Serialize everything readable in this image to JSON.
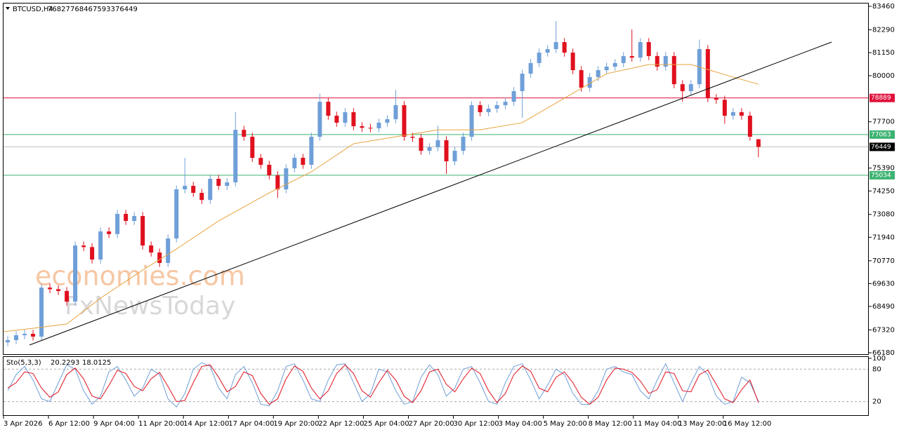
{
  "chart_data": {
    "type": "candlestick",
    "symbol": "BTCUSD,H4",
    "watermark": [
      "economies.com",
      "FxNewsToday"
    ],
    "up_color": "#6f9fd8",
    "down_color": "#e0101e",
    "xlim": [
      -0.5,
      102
    ],
    "xticks": [
      {
        "value": -0.5,
        "label": "3 Apr 2026"
      },
      {
        "value": 4.83,
        "label": "6 Apr 12:00"
      },
      {
        "value": 10.17,
        "label": "9 Apr 04:00"
      },
      {
        "value": 15.5,
        "label": "11 Apr 20:00"
      },
      {
        "value": 20.83,
        "label": "14 Apr 12:00"
      },
      {
        "value": 26.17,
        "label": "17 Apr 04:00"
      },
      {
        "value": 31.5,
        "label": "19 Apr 20:00"
      },
      {
        "value": 36.83,
        "label": "22 Apr 12:00"
      },
      {
        "value": 42.17,
        "label": "25 Apr 04:00"
      },
      {
        "value": 47.5,
        "label": "27 Apr 20:00"
      },
      {
        "value": 52.83,
        "label": "30 Apr 12:00"
      },
      {
        "value": 58.17,
        "label": "3 May 04:00"
      },
      {
        "value": 63.5,
        "label": "5 May 20:00"
      },
      {
        "value": 68.83,
        "label": "8 May 12:00"
      },
      {
        "value": 74.17,
        "label": "11 May 04:00"
      },
      {
        "value": 79.5,
        "label": "13 May 20:00"
      },
      {
        "value": 84.83,
        "label": "16 May 12:00"
      }
    ],
    "ylim": [
      66110,
      83635
    ],
    "yticks": [
      83460,
      82290,
      81150,
      80000,
      77700,
      75390,
      74250,
      73080,
      71940,
      70770,
      69630,
      68490,
      67320,
      66180
    ],
    "open": [
      66700,
      66810,
      67055,
      67125,
      66985,
      69430,
      69350,
      69260,
      68730,
      71530,
      71450,
      70830,
      72230,
      72100,
      73105,
      72755,
      73000,
      71530,
      71180,
      70660,
      71880,
      74330,
      74505,
      74155,
      73800,
      74855,
      74505,
      74680,
      77300,
      76955,
      75900,
      75555,
      75030,
      74330,
      75380,
      75905,
      75555,
      76955,
      78700,
      78005,
      77655,
      78180,
      77480,
      77400,
      77375,
      77655,
      77830,
      78530,
      76955,
      76900,
      76255,
      76430,
      76780,
      75730,
      76255,
      76955,
      78530,
      78180,
      78355,
      78530,
      78700,
      79230,
      80100,
      80630,
      81150,
      81325,
      81675,
      81150,
      80275,
      79400,
      79930,
      80275,
      80450,
      80630,
      80980,
      80900,
      81675,
      80980,
      80450,
      80980,
      79575,
      79230,
      79575,
      81325,
      78880,
      78800,
      78005,
      78180,
      78005,
      76827
    ],
    "high": [
      67010,
      67255,
      67325,
      67325,
      69630,
      69630,
      69550,
      69460,
      71730,
      71730,
      71650,
      72430,
      72430,
      73305,
      73305,
      73200,
      73200,
      71730,
      71380,
      72080,
      74530,
      75900,
      74705,
      74355,
      75055,
      75055,
      74880,
      78180,
      77500,
      77155,
      76100,
      75755,
      75230,
      75580,
      76105,
      76105,
      77155,
      79100,
      78900,
      78205,
      78380,
      78380,
      77680,
      77600,
      77855,
      78030,
      79300,
      78730,
      77155,
      77100,
      76630,
      77500,
      76980,
      76455,
      77155,
      78730,
      78730,
      78555,
      78730,
      78900,
      79430,
      80300,
      80830,
      81350,
      81525,
      82725,
      81875,
      81350,
      80475,
      80130,
      80475,
      80650,
      80830,
      81180,
      82300,
      81875,
      81875,
      81180,
      81180,
      81180,
      79775,
      79775,
      81800,
      81525,
      79080,
      79000,
      78380,
      78380,
      78205,
      76846
    ],
    "low": [
      66500,
      66610,
      66855,
      66785,
      66785,
      69150,
      69060,
      68530,
      68530,
      71250,
      70630,
      70630,
      71900,
      71900,
      72555,
      72555,
      71330,
      70980,
      70460,
      70460,
      71680,
      74130,
      73955,
      73600,
      73600,
      74305,
      74305,
      74480,
      76755,
      75700,
      75355,
      74830,
      73900,
      74130,
      75180,
      75355,
      75355,
      76755,
      77805,
      77455,
      77455,
      77280,
      77200,
      77175,
      77175,
      77455,
      77630,
      76755,
      76700,
      76055,
      76055,
      76230,
      75100,
      75530,
      76055,
      76755,
      77980,
      77980,
      78155,
      78330,
      78500,
      77900,
      79900,
      80430,
      80950,
      81125,
      80950,
      80075,
      79200,
      79200,
      79730,
      80075,
      80250,
      80430,
      80700,
      80700,
      80780,
      80250,
      80250,
      79375,
      78700,
      79030,
      79375,
      78680,
      78600,
      77600,
      77805,
      77805,
      76755,
      75933
    ],
    "close": [
      66810,
      67055,
      67125,
      66985,
      69430,
      69350,
      69260,
      68730,
      71530,
      71450,
      70830,
      72230,
      72100,
      73105,
      72755,
      73000,
      71530,
      71180,
      70660,
      71880,
      74330,
      74505,
      74155,
      73800,
      74855,
      74505,
      74680,
      77300,
      76955,
      75900,
      75555,
      75030,
      74330,
      75380,
      75905,
      75555,
      76955,
      78700,
      78005,
      77655,
      78180,
      77480,
      77400,
      77375,
      77655,
      77830,
      78530,
      76955,
      76900,
      76255,
      76430,
      76780,
      75730,
      76255,
      76955,
      78530,
      78180,
      78355,
      78530,
      78700,
      79230,
      80100,
      80630,
      81150,
      81325,
      81675,
      81150,
      80275,
      79400,
      79930,
      80275,
      80450,
      80630,
      80980,
      80900,
      81675,
      80980,
      80450,
      80980,
      79575,
      79230,
      79575,
      81325,
      78880,
      78800,
      78005,
      78180,
      78005,
      76955,
      76449
    ],
    "ma": {
      "color": "#e8a33c",
      "x": [
        -0.5,
        3,
        7,
        11,
        16,
        20,
        25,
        31,
        36,
        41,
        46,
        51,
        56,
        61,
        66,
        71,
        76,
        81,
        86,
        89
      ],
      "values": [
        67230,
        67400,
        67615,
        68905,
        70300,
        71355,
        72755,
        74155,
        75205,
        76605,
        76955,
        77300,
        77300,
        77655,
        78880,
        80100,
        80555,
        80555,
        79930,
        79575
      ]
    },
    "trendline": {
      "color": "#000000",
      "x": [
        2.58,
        97.67
      ],
      "values": [
        66565,
        81676
      ]
    },
    "price_line_color": "#c0c0c0",
    "hlines": [
      {
        "value": 78889,
        "color": "#e0103a"
      },
      {
        "value": 77063,
        "color": "#3cb371"
      },
      {
        "value": 75034,
        "color": "#3cb371"
      }
    ],
    "stochastic": {
      "name": "Sto(5,3,3)",
      "ylim": [
        0,
        100
      ],
      "yticks": [
        100,
        80,
        20
      ],
      "series": [
        {
          "color": "#6f9fd8",
          "values": [
            40,
            70,
            85,
            60,
            25,
            20,
            55,
            88,
            80,
            40,
            15,
            30,
            75,
            85,
            60,
            30,
            45,
            80,
            70,
            25,
            10,
            35,
            80,
            92,
            85,
            45,
            25,
            70,
            85,
            55,
            15,
            12,
            40,
            85,
            90,
            60,
            25,
            20,
            60,
            88,
            90,
            55,
            20,
            35,
            80,
            75,
            40,
            15,
            20,
            65,
            88,
            70,
            30,
            45,
            80,
            85,
            55,
            20,
            15,
            55,
            85,
            90,
            60,
            25,
            50,
            80,
            70,
            35,
            15,
            15,
            40,
            80,
            85,
            75,
            70,
            40,
            25,
            60,
            90,
            55,
            20,
            55,
            85,
            70,
            30,
            15,
            20,
            65,
            55,
            20.2293
          ]
        },
        {
          "color": "#e0101e",
          "values": [
            45,
            55,
            75,
            72,
            45,
            28,
            38,
            70,
            82,
            62,
            30,
            25,
            50,
            78,
            72,
            48,
            40,
            62,
            74,
            48,
            20,
            22,
            55,
            85,
            88,
            65,
            38,
            48,
            75,
            68,
            35,
            15,
            25,
            62,
            86,
            76,
            45,
            25,
            40,
            72,
            88,
            72,
            40,
            28,
            55,
            78,
            60,
            30,
            18,
            40,
            75,
            80,
            52,
            38,
            62,
            82,
            72,
            40,
            18,
            35,
            70,
            86,
            76,
            45,
            38,
            65,
            75,
            55,
            28,
            15,
            28,
            60,
            82,
            80,
            74,
            58,
            35,
            42,
            75,
            72,
            40,
            38,
            70,
            78,
            52,
            25,
            18,
            42,
            60,
            18.0125
          ]
        }
      ]
    }
  }
}
